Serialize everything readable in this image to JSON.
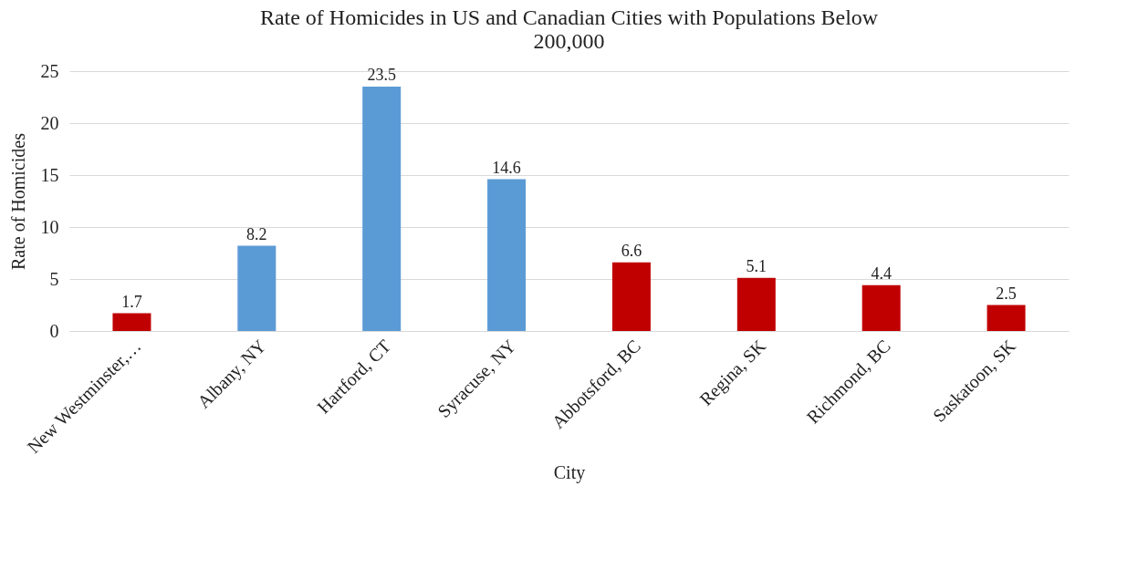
{
  "chart_data": {
    "type": "bar",
    "title": "Rate of Homicides in US and Canadian Cities with Populations Below 200,000",
    "xlabel": "City",
    "ylabel": "Rate of Homicides",
    "categories": [
      "New Westminster,…",
      "Albany, NY",
      "Hartford, CT",
      "Syracuse, NY",
      "Abbotsford, BC",
      "Regina, SK",
      "Richmond, BC",
      "Saskatoon, SK"
    ],
    "values": [
      1.7,
      8.2,
      23.5,
      14.6,
      6.6,
      5.1,
      4.4,
      2.5
    ],
    "colors": [
      "#c00000",
      "#5b9bd5",
      "#5b9bd5",
      "#5b9bd5",
      "#c00000",
      "#c00000",
      "#c00000",
      "#c00000"
    ],
    "ylim": [
      0,
      25
    ],
    "yticks": [
      0,
      5,
      10,
      15,
      20,
      25
    ],
    "grid": "y",
    "data_labels": true
  }
}
